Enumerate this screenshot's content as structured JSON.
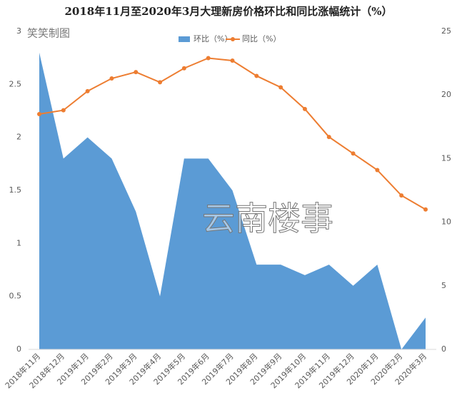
{
  "chart_data": {
    "type": "combo",
    "title": "2018年11月至2020年3月大理新房价格环比和同比涨幅统计（%）",
    "annotations": [
      "笑笑制图",
      "云南楼事"
    ],
    "categories": [
      "2018年11月",
      "2018年12月",
      "2019年1月",
      "2019年2月",
      "2019年3月",
      "2019年4月",
      "2019年5月",
      "2019年6月",
      "2019年7月",
      "2019年8月",
      "2019年9月",
      "2019年10月",
      "2019年11月",
      "2019年12月",
      "2020年1月",
      "2020年2月",
      "2020年3月"
    ],
    "series": [
      {
        "name": "环比（%）",
        "type": "area",
        "axis": "y",
        "color": "#5b9bd5",
        "values": [
          2.8,
          1.8,
          2.0,
          1.8,
          1.3,
          0.5,
          1.8,
          1.8,
          1.5,
          0.8,
          0.8,
          0.7,
          0.8,
          0.6,
          0.8,
          0.0,
          0.3
        ]
      },
      {
        "name": "同比（%）",
        "type": "line",
        "axis": "y2",
        "color": "#ed7d31",
        "values": [
          18.5,
          18.8,
          20.3,
          21.3,
          21.8,
          21.0,
          22.1,
          22.9,
          22.7,
          21.5,
          20.6,
          18.9,
          16.7,
          15.4,
          14.1,
          12.1,
          11.0
        ]
      }
    ],
    "ylim": [
      0,
      3
    ],
    "yticks": [
      0,
      0.5,
      1,
      1.5,
      2,
      2.5,
      3
    ],
    "y2lim": [
      0,
      25
    ],
    "y2ticks": [
      0,
      5,
      10,
      15,
      20,
      25
    ],
    "legend": "top"
  }
}
